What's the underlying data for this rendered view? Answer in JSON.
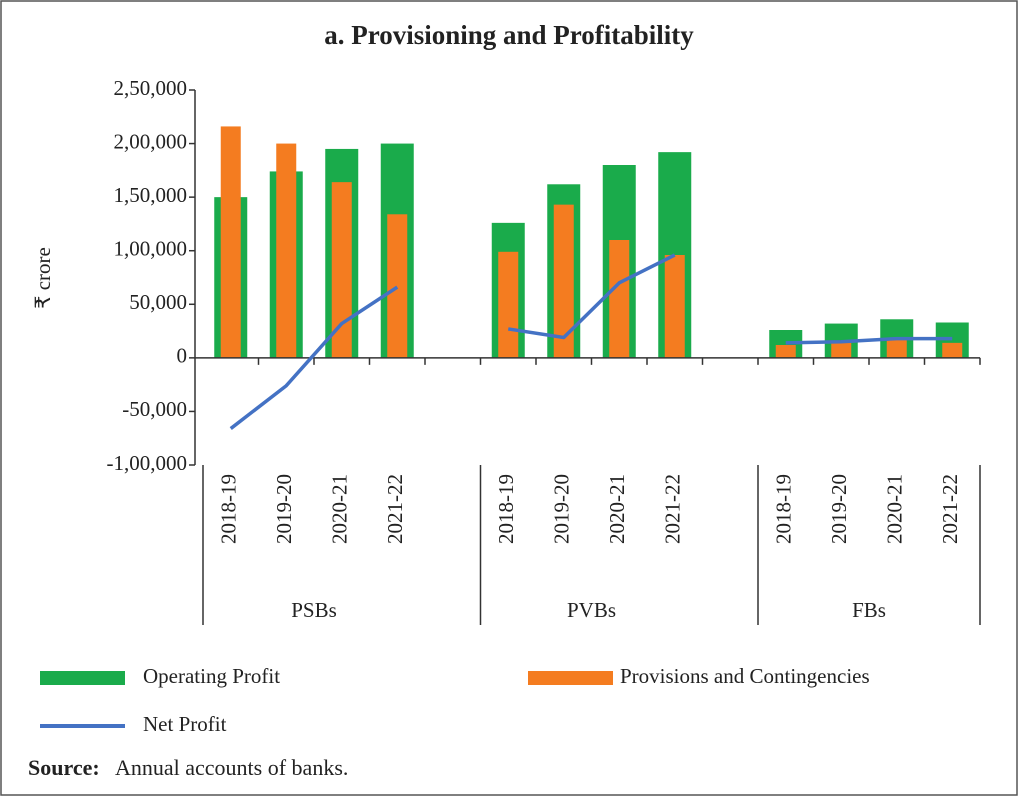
{
  "chart_data": {
    "type": "bar-line",
    "title": "a. Provisioning and Profitability",
    "y_label": "₹ crore",
    "categories": [
      "2018-19",
      "2019-20",
      "2020-21",
      "2021-22",
      null,
      "2018-19",
      "2019-20",
      "2020-21",
      "2021-22",
      null,
      "2018-19",
      "2019-20",
      "2020-21",
      "2021-22"
    ],
    "group_labels": [
      "PSBs",
      "PVBs",
      "FBs"
    ],
    "series": [
      {
        "name": "Operating Profit",
        "kind": "bar",
        "color": "#1aab4b",
        "values": [
          150000,
          174000,
          195000,
          200000,
          null,
          126000,
          162000,
          180000,
          192000,
          null,
          26000,
          32000,
          36000,
          33000
        ]
      },
      {
        "name": "Provisions and Contingencies",
        "kind": "bar",
        "color": "#f47c20",
        "values": [
          216000,
          200000,
          164000,
          134000,
          null,
          99000,
          143000,
          110000,
          96000,
          null,
          12000,
          15000,
          17000,
          14000
        ]
      },
      {
        "name": "Net Profit",
        "kind": "line",
        "color": "#4472c4",
        "values": [
          -66000,
          -26000,
          32000,
          66000,
          null,
          27000,
          19000,
          70000,
          96000,
          null,
          14000,
          15000,
          18000,
          18000
        ]
      }
    ],
    "ylim": [
      -100000,
      250000
    ],
    "yticks": [
      {
        "value": -100000,
        "label": "-1,00,000"
      },
      {
        "value": -50000,
        "label": "-50,000"
      },
      0,
      {
        "value": 50000,
        "label": "50,000"
      },
      {
        "value": 100000,
        "label": "1,00,000"
      },
      {
        "value": 150000,
        "label": "1,50,000"
      },
      {
        "value": 200000,
        "label": "2,00,000"
      },
      {
        "value": 250000,
        "label": "2,50,000"
      }
    ],
    "source_label": "Source:",
    "source": "Annual accounts of banks."
  }
}
